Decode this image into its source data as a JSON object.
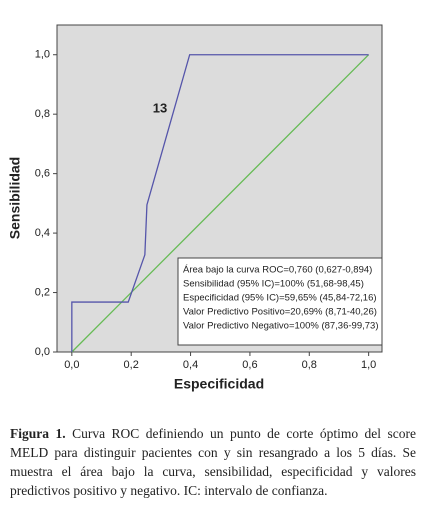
{
  "chart_data": {
    "type": "line",
    "xlabel": "Especificidad",
    "ylabel": "Sensibilidad",
    "xlim": [
      -0.05,
      1.045
    ],
    "ylim": [
      0,
      1.1
    ],
    "xticks": [
      {
        "value": 0,
        "label": "0,0"
      },
      {
        "value": 0.2,
        "label": "0,2"
      },
      {
        "value": 0.4,
        "label": "0,4"
      },
      {
        "value": 0.6,
        "label": "0,6"
      },
      {
        "value": 0.8,
        "label": "0,8"
      },
      {
        "value": 1,
        "label": "1,0"
      }
    ],
    "yticks": [
      {
        "value": 0,
        "label": "0,0"
      },
      {
        "value": 0.2,
        "label": "0,2"
      },
      {
        "value": 0.4,
        "label": "0,4"
      },
      {
        "value": 0.6,
        "label": "0,6"
      },
      {
        "value": 0.8,
        "label": "0,8"
      },
      {
        "value": 1,
        "label": "1,0"
      }
    ],
    "series": [
      {
        "color": "#5555aa",
        "x": [
          0,
          0,
          0.19,
          0.246,
          0.253,
          0.397,
          1
        ],
        "values": [
          0,
          0.168,
          0.168,
          0.327,
          0.495,
          1,
          1
        ]
      },
      {
        "color": "#66bb55",
        "x": [
          0,
          1
        ],
        "values": [
          0,
          1
        ]
      }
    ],
    "annotations": [
      "13"
    ],
    "stats": [
      "Área bajo la curva ROC=0,760 (0,627-0,894)",
      "Sensibilidad (95% IC)=100% (51,68-98,45)",
      "Especificidad (95% IC)=59,65% (45,84-72,16)",
      "Valor Predictivo Positivo=20,69% (8,71-40,26)",
      "Valor Predictivo Negativo=100% (87,36-99,73)"
    ]
  },
  "caption": {
    "label": "Figura 1.",
    "text": "Curva ROC definiendo un punto de corte óptimo del score MELD para distinguir pacientes con y sin resangrado a los 5 días. Se muestra el área bajo la curva, sensibilidad, especificidad y valores predictivos positivo y negativo. IC: intervalo de confianza."
  }
}
